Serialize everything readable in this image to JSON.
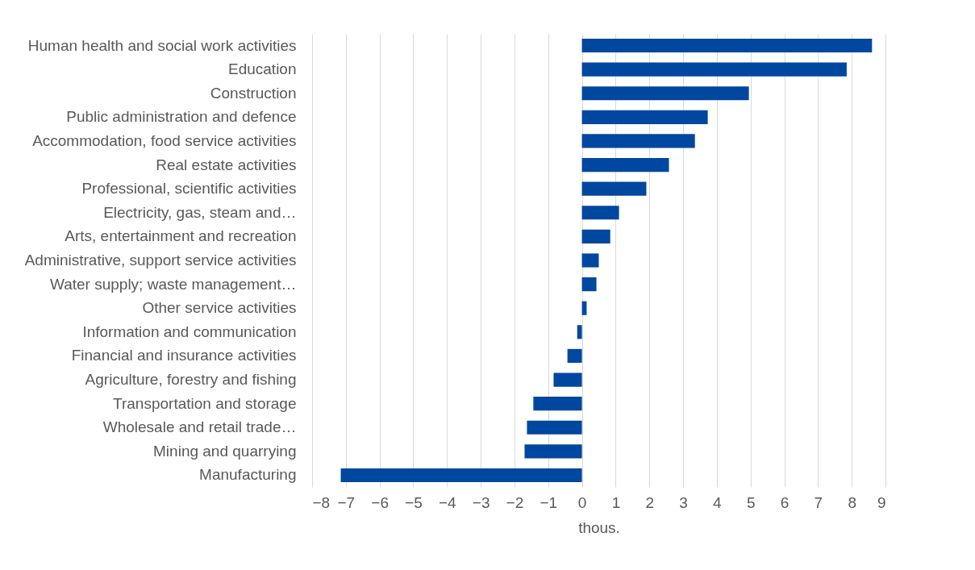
{
  "chart_data": {
    "type": "bar",
    "orientation": "horizontal",
    "xlabel": "thous.",
    "color": "#0047a0",
    "categories": [
      "Human health and social work activities",
      "Education",
      "Construction",
      "Public administration and defence",
      "Accommodation, food service activities",
      "Real estate activities",
      "Professional, scientific activities",
      "Electricity, gas, steam and…",
      "Arts, entertainment and recreation",
      "Administrative, support service activities",
      "Water supply; waste management…",
      "Other service activities",
      "Information and communication",
      "Financial and insurance activities",
      "Agriculture, forestry and fishing",
      "Transportation and storage",
      "Wholesale and retail trade…",
      "Mining and quarrying",
      "Manufacturing"
    ],
    "values": [
      8.6,
      7.85,
      4.95,
      3.73,
      3.35,
      2.58,
      1.91,
      1.1,
      0.84,
      0.5,
      0.43,
      0.14,
      -0.14,
      -0.43,
      -0.84,
      -1.44,
      -1.63,
      -1.7,
      -7.15
    ],
    "xlim": [
      -8,
      9
    ],
    "xticks": [
      -8,
      -7,
      -6,
      -5,
      -4,
      -3,
      -2,
      -1,
      0,
      1,
      2,
      3,
      4,
      5,
      6,
      7,
      8,
      9
    ],
    "grid": "x"
  }
}
